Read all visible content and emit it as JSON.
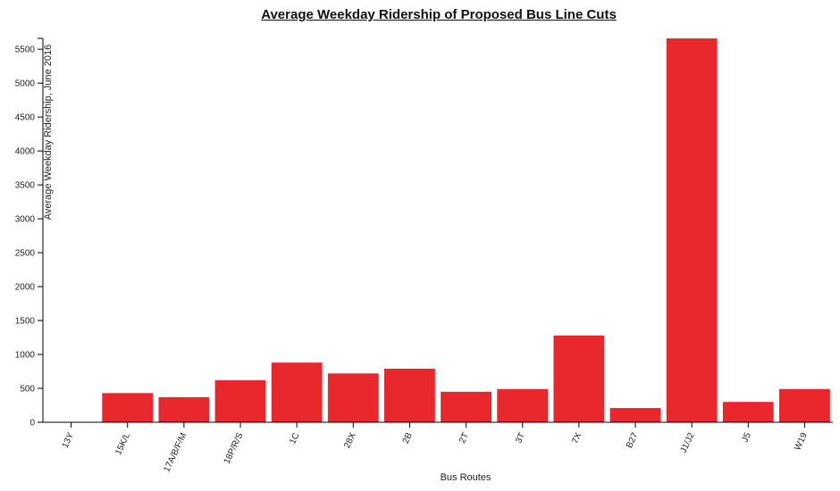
{
  "chart_data": {
    "type": "bar",
    "title": "Average Weekday Ridership of Proposed Bus Line Cuts",
    "xlabel": "Bus Routes",
    "ylabel": "Average Weekday Ridership, June 2016",
    "categories": [
      "13Y",
      "15K/L",
      "17A/B/F/M",
      "18P/R/S",
      "1C",
      "28X",
      "2B",
      "2T",
      "3T",
      "7X",
      "B27",
      "J1/J2",
      "J5",
      "W19"
    ],
    "values": [
      0,
      430,
      370,
      620,
      880,
      720,
      790,
      450,
      490,
      1280,
      210,
      5660,
      300,
      490
    ],
    "ylim": [
      0,
      5660
    ],
    "yticks": [
      0,
      500,
      1000,
      1500,
      2000,
      2500,
      3000,
      3500,
      4000,
      4500,
      5000,
      5500
    ],
    "bar_color": "#e8282d",
    "grid": false,
    "legend": "none"
  }
}
